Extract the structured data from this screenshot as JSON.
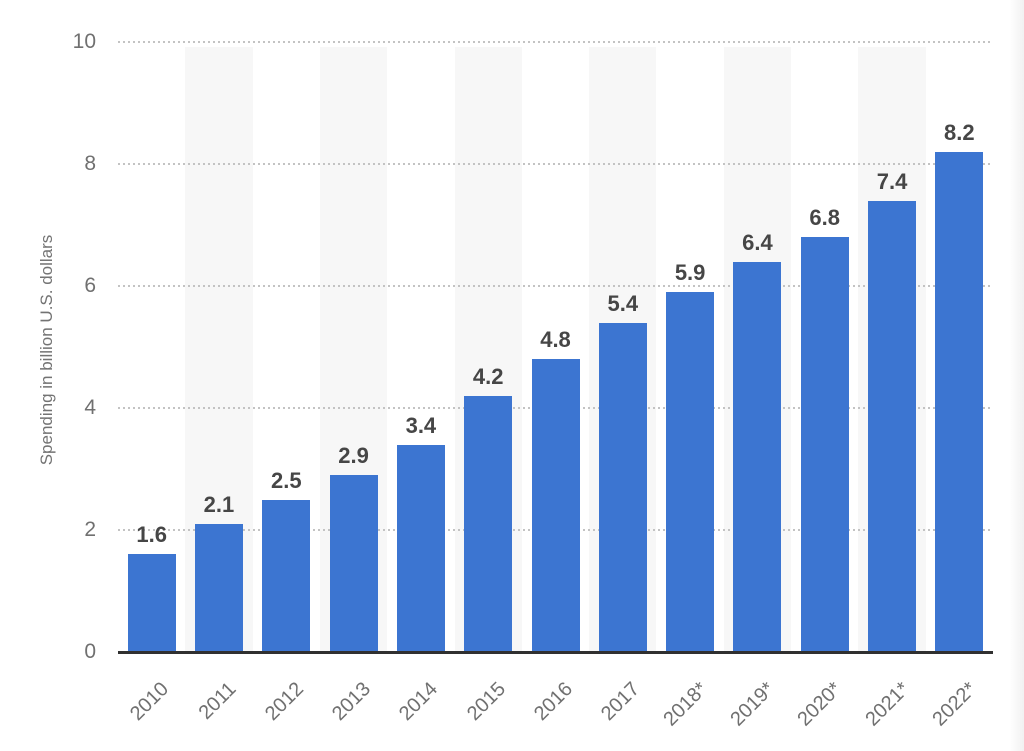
{
  "chart_data": {
    "type": "bar",
    "title": "",
    "categories": [
      "2010",
      "2011",
      "2012",
      "2013",
      "2014",
      "2015",
      "2016",
      "2017",
      "2018*",
      "2019*",
      "2020*",
      "2021*",
      "2022*"
    ],
    "values": [
      1.6,
      2.1,
      2.5,
      2.9,
      3.4,
      4.2,
      4.8,
      5.4,
      5.9,
      6.4,
      6.8,
      7.4,
      8.2
    ],
    "xlabel": "",
    "ylabel": "Spending in billion U.S. dollars",
    "ylim": [
      0,
      10
    ],
    "yticks": [
      0,
      2,
      4,
      6,
      8,
      10
    ],
    "grid": "horizontal-dotted",
    "legend_position": "none",
    "colors": {
      "bar": "#3C75D1",
      "band": "#F7F7F7",
      "gridline": "#C3C3C3",
      "axis_line": "#303030",
      "tick_label": "#707070",
      "value_label": "#464646",
      "axis_title": "#737373",
      "background": "#FFFFFF"
    }
  }
}
